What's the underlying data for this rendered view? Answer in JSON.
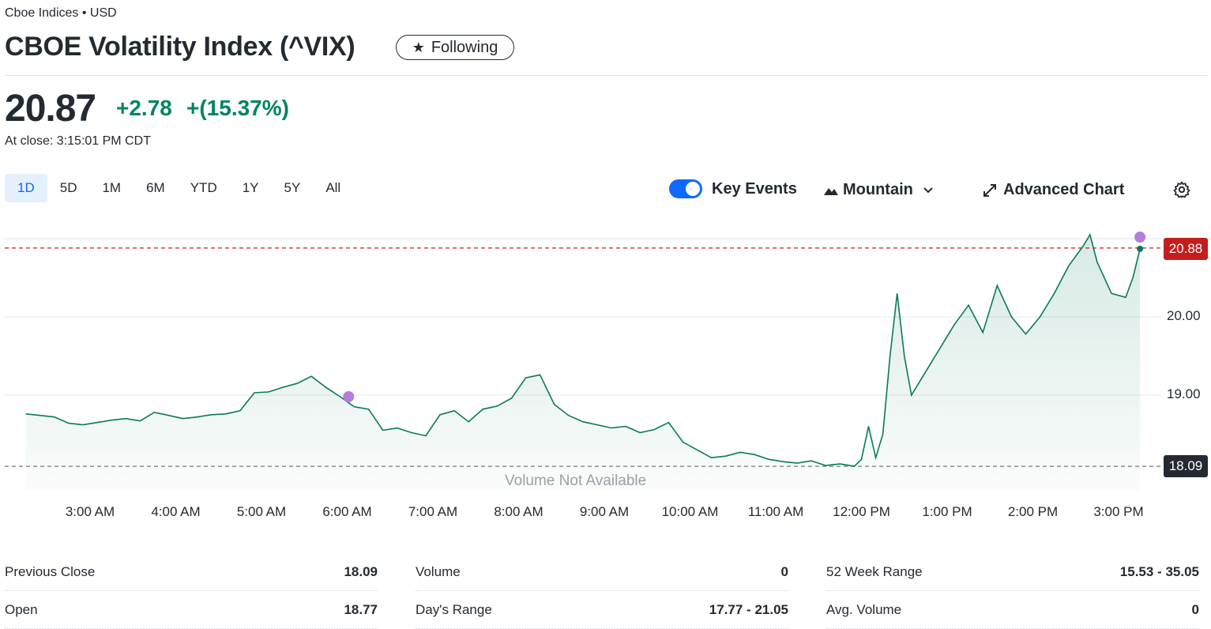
{
  "header": {
    "exchange": "Cboe Indices • USD",
    "title": "CBOE Volatility Index (^VIX)",
    "follow_label": "Following"
  },
  "quote": {
    "price": "20.87",
    "change": "+2.78",
    "change_pct": "+(15.37%)",
    "close_time": "At close: 3:15:01 PM CDT"
  },
  "ranges": [
    "1D",
    "5D",
    "1M",
    "6M",
    "YTD",
    "1Y",
    "5Y",
    "All"
  ],
  "active_range": "1D",
  "toolbar": {
    "key_events_label": "Key Events",
    "key_events_on": true,
    "chart_type_label": "Mountain",
    "advanced_label": "Advanced Chart"
  },
  "chart_data": {
    "type": "area",
    "x_ticks": [
      "3:00 AM",
      "4:00 AM",
      "5:00 AM",
      "6:00 AM",
      "7:00 AM",
      "8:00 AM",
      "9:00 AM",
      "10:00 AM",
      "11:00 AM",
      "12:00 PM",
      "1:00 PM",
      "2:00 PM",
      "3:00 PM"
    ],
    "y_ticks": [
      19.0,
      20.0
    ],
    "ylim": [
      17.75,
      21.15
    ],
    "current_price_tag": "20.88",
    "previous_close_tag": "18.09",
    "previous_close": 18.09,
    "volume_note": "Volume Not Available",
    "line_color": "#0a7a5c",
    "points": [
      [
        "2:15",
        18.76
      ],
      [
        "2:25",
        18.74
      ],
      [
        "2:35",
        18.72
      ],
      [
        "2:45",
        18.64
      ],
      [
        "2:55",
        18.62
      ],
      [
        "3:05",
        18.65
      ],
      [
        "3:15",
        18.68
      ],
      [
        "3:25",
        18.7
      ],
      [
        "3:35",
        18.67
      ],
      [
        "3:45",
        18.78
      ],
      [
        "3:55",
        18.74
      ],
      [
        "4:05",
        18.7
      ],
      [
        "4:15",
        18.72
      ],
      [
        "4:25",
        18.75
      ],
      [
        "4:35",
        18.76
      ],
      [
        "4:45",
        18.8
      ],
      [
        "4:55",
        19.03
      ],
      [
        "5:05",
        19.04
      ],
      [
        "5:15",
        19.1
      ],
      [
        "5:25",
        19.15
      ],
      [
        "5:35",
        19.24
      ],
      [
        "5:45",
        19.1
      ],
      [
        "5:55",
        18.98
      ],
      [
        "6:05",
        18.85
      ],
      [
        "6:15",
        18.82
      ],
      [
        "6:25",
        18.55
      ],
      [
        "6:35",
        18.58
      ],
      [
        "6:45",
        18.52
      ],
      [
        "6:55",
        18.48
      ],
      [
        "7:05",
        18.75
      ],
      [
        "7:15",
        18.8
      ],
      [
        "7:25",
        18.66
      ],
      [
        "7:35",
        18.82
      ],
      [
        "7:45",
        18.86
      ],
      [
        "7:55",
        18.96
      ],
      [
        "8:05",
        19.22
      ],
      [
        "8:15",
        19.26
      ],
      [
        "8:25",
        18.88
      ],
      [
        "8:35",
        18.74
      ],
      [
        "8:45",
        18.66
      ],
      [
        "8:55",
        18.62
      ],
      [
        "9:05",
        18.58
      ],
      [
        "9:15",
        18.6
      ],
      [
        "9:25",
        18.52
      ],
      [
        "9:35",
        18.56
      ],
      [
        "9:45",
        18.65
      ],
      [
        "9:55",
        18.4
      ],
      [
        "10:05",
        18.3
      ],
      [
        "10:15",
        18.2
      ],
      [
        "10:25",
        18.22
      ],
      [
        "10:35",
        18.27
      ],
      [
        "10:45",
        18.24
      ],
      [
        "10:55",
        18.18
      ],
      [
        "11:05",
        18.15
      ],
      [
        "11:15",
        18.13
      ],
      [
        "11:25",
        18.16
      ],
      [
        "11:35",
        18.1
      ],
      [
        "11:45",
        18.12
      ],
      [
        "11:55",
        18.09
      ],
      [
        "12:00",
        18.18
      ],
      [
        "12:05",
        18.6
      ],
      [
        "12:10",
        18.2
      ],
      [
        "12:15",
        18.5
      ],
      [
        "12:20",
        19.5
      ],
      [
        "12:25",
        20.3
      ],
      [
        "12:30",
        19.5
      ],
      [
        "12:35",
        19.0
      ],
      [
        "12:45",
        19.3
      ],
      [
        "12:55",
        19.6
      ],
      [
        "1:05",
        19.9
      ],
      [
        "1:15",
        20.15
      ],
      [
        "1:25",
        19.8
      ],
      [
        "1:35",
        20.4
      ],
      [
        "1:45",
        20.0
      ],
      [
        "1:55",
        19.78
      ],
      [
        "2:05",
        20.0
      ],
      [
        "2:15",
        20.3
      ],
      [
        "2:25",
        20.65
      ],
      [
        "2:35",
        20.9
      ],
      [
        "2:40",
        21.05
      ],
      [
        "2:45",
        20.7
      ],
      [
        "2:55",
        20.3
      ],
      [
        "3:05",
        20.25
      ],
      [
        "3:10",
        20.5
      ],
      [
        "3:15",
        20.87
      ]
    ]
  },
  "stats": [
    [
      {
        "label": "Previous Close",
        "value": "18.09"
      },
      {
        "label": "Open",
        "value": "18.77"
      }
    ],
    [
      {
        "label": "Volume",
        "value": "0"
      },
      {
        "label": "Day's Range",
        "value": "17.77 - 21.05"
      }
    ],
    [
      {
        "label": "52 Week Range",
        "value": "15.53 - 35.05"
      },
      {
        "label": "Avg. Volume",
        "value": "0"
      }
    ]
  ]
}
